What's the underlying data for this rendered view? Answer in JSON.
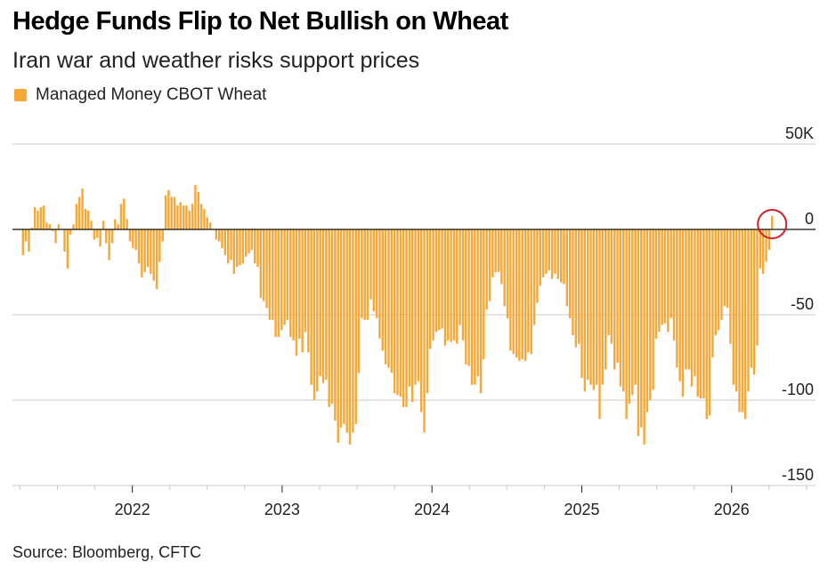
{
  "chart_data": {
    "type": "bar",
    "title": "Hedge Funds Flip to Net Bullish on Wheat",
    "subtitle": "Iran war and weather risks support prices",
    "legend": [
      {
        "name": "Managed Money CBOT Wheat",
        "color": "#f6a735"
      }
    ],
    "legend_placement": "top-left",
    "source": "Source: Bloomberg, CFTC",
    "xlabel": "",
    "ylabel": "",
    "x_frequency": "weekly",
    "x_first": 2021.27,
    "x_last": 2026.27,
    "xlim": [
      2021.2,
      2026.56
    ],
    "ylim": [
      -150,
      50
    ],
    "y_ticks": [
      50,
      0,
      -50,
      -100,
      -150
    ],
    "y_tick_labels": [
      "50K",
      "0",
      "-50",
      "-100",
      "-150"
    ],
    "x_ticks": [
      2022,
      2023,
      2024,
      2025,
      2026
    ],
    "x_tick_labels": [
      "2022",
      "2023",
      "2024",
      "2025",
      "2026"
    ],
    "grid": true,
    "annotation": "latest value circled (net long)",
    "values": [
      -15,
      -7,
      -13,
      1,
      13,
      11,
      13,
      14,
      4,
      3,
      -1,
      -8,
      3,
      0,
      -13,
      -23,
      -3,
      3,
      15,
      19,
      24,
      12,
      11,
      5,
      -6,
      -5,
      -10,
      5,
      -8,
      -18,
      -8,
      6,
      3,
      15,
      18,
      6,
      -7,
      -11,
      -12,
      -20,
      -28,
      -25,
      -22,
      -26,
      -30,
      -35,
      -19,
      -7,
      20,
      23,
      19,
      19,
      14,
      16,
      14,
      14,
      11,
      15,
      26,
      22,
      15,
      12,
      7,
      4,
      0,
      -6,
      -7,
      -11,
      -15,
      -20,
      -18,
      -26,
      -22,
      -21,
      -20,
      -16,
      -14,
      -12,
      -20,
      -22,
      -40,
      -42,
      -46,
      -53,
      -53,
      -63,
      -63,
      -59,
      -56,
      -53,
      -63,
      -65,
      -74,
      -64,
      -72,
      -60,
      -72,
      -91,
      -100,
      -95,
      -86,
      -90,
      -88,
      -104,
      -102,
      -112,
      -125,
      -116,
      -114,
      -119,
      -126,
      -119,
      -114,
      -84,
      -52,
      -53,
      -53,
      -41,
      -48,
      -52,
      -64,
      -71,
      -79,
      -81,
      -84,
      -96,
      -97,
      -98,
      -104,
      -104,
      -92,
      -101,
      -91,
      -89,
      -107,
      -119,
      -96,
      -70,
      -65,
      -60,
      -59,
      -58,
      -68,
      -65,
      -66,
      -65,
      -67,
      -56,
      -65,
      -79,
      -80,
      -91,
      -91,
      -86,
      -96,
      -76,
      -47,
      -42,
      -28,
      -25,
      -25,
      -32,
      -45,
      -52,
      -71,
      -73,
      -75,
      -77,
      -76,
      -77,
      -72,
      -73,
      -56,
      -43,
      -33,
      -28,
      -26,
      -24,
      -29,
      -26,
      -29,
      -31,
      -32,
      -45,
      -52,
      -62,
      -69,
      -67,
      -87,
      -95,
      -88,
      -91,
      -94,
      -91,
      -111,
      -91,
      -82,
      -62,
      -67,
      -82,
      -78,
      -92,
      -95,
      -111,
      -102,
      -97,
      -91,
      -121,
      -116,
      -126,
      -107,
      -100,
      -94,
      -64,
      -60,
      -56,
      -55,
      -60,
      -52,
      -65,
      -81,
      -89,
      -98,
      -82,
      -82,
      -92,
      -86,
      -98,
      -99,
      -99,
      -111,
      -109,
      -75,
      -62,
      -59,
      -53,
      -45,
      -46,
      -67,
      -91,
      -95,
      -107,
      -107,
      -111,
      -95,
      -81,
      -85,
      -68,
      -23,
      -26,
      -19,
      -12,
      8
    ]
  }
}
